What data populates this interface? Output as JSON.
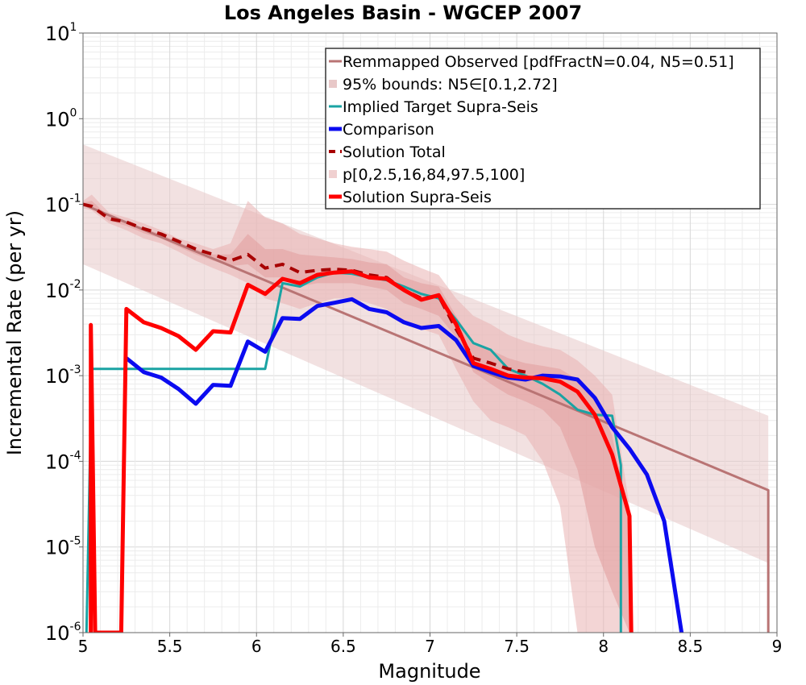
{
  "chart_data": {
    "type": "line",
    "title": "Los Angeles Basin - WGCEP 2007",
    "xlabel": "Magnitude",
    "ylabel": "Incremental Rate (per yr)",
    "xlim": [
      5,
      9
    ],
    "ylim": [
      1e-06,
      10
    ],
    "yscale": "log",
    "grid": true,
    "legend_position": "top-right",
    "x_ticks": [
      "5",
      "5.5",
      "6",
      "6.5",
      "7",
      "7.5",
      "8",
      "8.5",
      "9"
    ],
    "y_ticks": [
      {
        "base": "10",
        "exp": "-6"
      },
      {
        "base": "10",
        "exp": "-5"
      },
      {
        "base": "10",
        "exp": "-4"
      },
      {
        "base": "10",
        "exp": "-3"
      },
      {
        "base": "10",
        "exp": "-2"
      },
      {
        "base": "10",
        "exp": "-1"
      },
      {
        "base": "10",
        "exp": "0"
      },
      {
        "base": "10",
        "exp": "1"
      }
    ],
    "bands": [
      {
        "name": "95% bounds: N5∈[0.1,2.72]",
        "color": "#e8c8c8",
        "opacity": 0.55,
        "x": [
          5,
          8.95
        ],
        "lower": [
          0.02,
          6.5e-06
        ],
        "upper": [
          0.5,
          0.00034
        ]
      },
      {
        "name": "p[0,2.5,16,84,97.5,100]",
        "color": "#e9b3b3",
        "opacity": 0.55,
        "x": [
          5.0,
          5.05,
          5.15,
          5.25,
          5.35,
          5.45,
          5.55,
          5.65,
          5.75,
          5.85,
          5.95,
          6.05,
          6.15,
          6.25,
          6.35,
          6.45,
          6.55,
          6.65,
          6.75,
          6.85,
          6.95,
          7.05,
          7.15,
          7.25,
          7.35,
          7.45,
          7.55,
          7.65,
          7.75,
          7.85,
          7.95,
          8.05,
          8.15
        ],
        "lower": [
          0.09,
          0.085,
          0.06,
          0.05,
          0.04,
          0.035,
          0.028,
          0.022,
          0.018,
          0.015,
          0.012,
          0.008,
          0.007,
          0.006,
          0.007,
          0.008,
          0.008,
          0.007,
          0.006,
          0.004,
          0.0035,
          0.003,
          0.0012,
          0.0005,
          0.0003,
          0.00025,
          0.0002,
          0.0001,
          3e-05,
          1e-06,
          1e-06,
          1e-06,
          1e-06
        ],
        "upper": [
          0.11,
          0.13,
          0.08,
          0.07,
          0.06,
          0.05,
          0.04,
          0.035,
          0.03,
          0.035,
          0.11,
          0.07,
          0.06,
          0.045,
          0.04,
          0.035,
          0.032,
          0.03,
          0.028,
          0.022,
          0.018,
          0.015,
          0.008,
          0.005,
          0.004,
          0.003,
          0.0025,
          0.0022,
          0.002,
          0.0015,
          0.001,
          0.0006,
          3e-05
        ]
      },
      {
        "name": "",
        "color": "#e3a0a0",
        "opacity": 0.6,
        "x": [
          5.0,
          5.05,
          5.15,
          5.25,
          5.35,
          5.45,
          5.55,
          5.65,
          5.75,
          5.85,
          5.95,
          6.05,
          6.15,
          6.25,
          6.35,
          6.45,
          6.55,
          6.65,
          6.75,
          6.85,
          6.95,
          7.05,
          7.15,
          7.25,
          7.35,
          7.45,
          7.55,
          7.65,
          7.75,
          7.85,
          7.95,
          8.05,
          8.15
        ],
        "lower": [
          0.095,
          0.09,
          0.064,
          0.056,
          0.046,
          0.04,
          0.032,
          0.026,
          0.022,
          0.019,
          0.02,
          0.014,
          0.014,
          0.011,
          0.012,
          0.012,
          0.012,
          0.011,
          0.01,
          0.007,
          0.006,
          0.005,
          0.0028,
          0.0011,
          0.0008,
          0.0006,
          0.0005,
          0.0004,
          0.00025,
          8e-05,
          1e-05,
          3e-06,
          1e-06
        ],
        "upper": [
          0.105,
          0.11,
          0.072,
          0.062,
          0.052,
          0.045,
          0.036,
          0.03,
          0.026,
          0.026,
          0.045,
          0.03,
          0.03,
          0.026,
          0.025,
          0.024,
          0.023,
          0.021,
          0.02,
          0.014,
          0.012,
          0.011,
          0.005,
          0.0024,
          0.002,
          0.0016,
          0.0014,
          0.0013,
          0.0012,
          0.0009,
          0.0006,
          0.0002,
          2e-05
        ]
      }
    ],
    "series": [
      {
        "name": "Remmapped Observed [pdfFractN=0.04, N5=0.51]",
        "color": "#b97474",
        "width": 3,
        "dash": "",
        "x": [
          5.0,
          8.95,
          8.95
        ],
        "y": [
          0.1,
          4.6e-05,
          1e-06
        ]
      },
      {
        "name": "Implied Target Supra-Seis",
        "color": "#1aa3a3",
        "width": 3,
        "dash": "",
        "x": [
          5.02,
          5.05,
          5.15,
          5.25,
          5.35,
          5.45,
          5.55,
          5.65,
          5.75,
          5.85,
          5.95,
          6.05,
          6.15,
          6.25,
          6.35,
          6.45,
          6.55,
          6.65,
          6.75,
          6.85,
          6.95,
          7.05,
          7.15,
          7.25,
          7.35,
          7.45,
          7.55,
          7.65,
          7.75,
          7.85,
          7.95,
          8.05,
          8.1,
          8.1
        ],
        "y": [
          1e-06,
          0.0012,
          0.0012,
          0.0012,
          0.0012,
          0.0012,
          0.0012,
          0.0012,
          0.0012,
          0.0012,
          0.0012,
          0.0012,
          0.012,
          0.011,
          0.014,
          0.016,
          0.0155,
          0.014,
          0.013,
          0.011,
          0.009,
          0.008,
          0.0045,
          0.0024,
          0.002,
          0.0012,
          0.001,
          0.0008,
          0.0006,
          0.0004,
          0.00035,
          0.00034,
          9e-05,
          1e-06
        ]
      },
      {
        "name": "Comparison",
        "color": "#0b0bf0",
        "width": 5,
        "dash": "",
        "x": [
          5.25,
          5.35,
          5.45,
          5.55,
          5.65,
          5.75,
          5.85,
          5.95,
          6.05,
          6.15,
          6.25,
          6.35,
          6.45,
          6.55,
          6.65,
          6.75,
          6.85,
          6.95,
          7.05,
          7.15,
          7.25,
          7.35,
          7.45,
          7.55,
          7.65,
          7.75,
          7.85,
          7.95,
          8.05,
          8.15,
          8.25,
          8.35,
          8.45
        ],
        "y": [
          0.0016,
          0.0011,
          0.00095,
          0.0007,
          0.00047,
          0.00078,
          0.00076,
          0.0025,
          0.0019,
          0.0047,
          0.0046,
          0.0065,
          0.0071,
          0.0078,
          0.006,
          0.0055,
          0.0042,
          0.0036,
          0.0038,
          0.0026,
          0.0013,
          0.0011,
          0.00095,
          0.0009,
          0.001,
          0.00098,
          0.0009,
          0.00055,
          0.00025,
          0.00014,
          7e-05,
          2e-05,
          1e-06
        ]
      },
      {
        "name": "Solution Total",
        "color": "#a80000",
        "width": 4,
        "dash": "12,8",
        "x": [
          5.0,
          5.05,
          5.15,
          5.25,
          5.35,
          5.45,
          5.55,
          5.65,
          5.75,
          5.85,
          5.95,
          6.05,
          6.15,
          6.25,
          6.35,
          6.45,
          6.55,
          6.65,
          6.75,
          6.85,
          6.95,
          7.05,
          7.15,
          7.25,
          7.35,
          7.45,
          7.55
        ],
        "y": [
          0.1,
          0.095,
          0.068,
          0.062,
          0.052,
          0.045,
          0.037,
          0.03,
          0.026,
          0.022,
          0.026,
          0.018,
          0.02,
          0.016,
          0.017,
          0.0175,
          0.017,
          0.015,
          0.014,
          0.01,
          0.008,
          0.0085,
          0.0035,
          0.0016,
          0.0014,
          0.0012,
          0.0011
        ]
      },
      {
        "name": "Solution Supra-Seis",
        "color": "#ff0000",
        "width": 5,
        "dash": "",
        "x": [
          5.045,
          5.045,
          5.07,
          5.22,
          5.25,
          5.35,
          5.45,
          5.55,
          5.65,
          5.75,
          5.85,
          5.95,
          6.05,
          6.15,
          6.25,
          6.35,
          6.45,
          6.55,
          6.65,
          6.75,
          6.85,
          6.95,
          7.05,
          7.15,
          7.25,
          7.35,
          7.45,
          7.55,
          7.65,
          7.75,
          7.85,
          7.95,
          8.05,
          8.15,
          8.16
        ],
        "y": [
          1e-06,
          0.0039,
          1e-06,
          1e-06,
          0.006,
          0.0042,
          0.0036,
          0.0029,
          0.002,
          0.0033,
          0.0032,
          0.0115,
          0.009,
          0.0135,
          0.012,
          0.015,
          0.016,
          0.0165,
          0.014,
          0.0135,
          0.01,
          0.0077,
          0.0087,
          0.004,
          0.0014,
          0.0012,
          0.001,
          0.00095,
          0.00093,
          0.00085,
          0.00065,
          0.00035,
          0.00012,
          2.3e-05,
          1e-06
        ]
      }
    ],
    "legend": [
      {
        "label": "Remmapped Observed [pdfFractN=0.04, N5=0.51]",
        "kind": "line",
        "color": "#b97474",
        "width": 3,
        "dash": ""
      },
      {
        "label": "95% bounds: N5∈[0.1,2.72]",
        "kind": "box",
        "color": "#e8c8c8",
        "width": 0,
        "dash": ""
      },
      {
        "label": "Implied Target Supra-Seis",
        "kind": "line",
        "color": "#1aa3a3",
        "width": 3,
        "dash": ""
      },
      {
        "label": "Comparison",
        "kind": "line",
        "color": "#0b0bf0",
        "width": 5,
        "dash": ""
      },
      {
        "label": "Solution Total",
        "kind": "line",
        "color": "#a80000",
        "width": 4,
        "dash": "8,6"
      },
      {
        "label": "p[0,2.5,16,84,97.5,100]",
        "kind": "box",
        "color": "#f0d0d0",
        "width": 0,
        "dash": ""
      },
      {
        "label": "Solution Supra-Seis",
        "kind": "line",
        "color": "#ff0000",
        "width": 5,
        "dash": ""
      }
    ]
  }
}
